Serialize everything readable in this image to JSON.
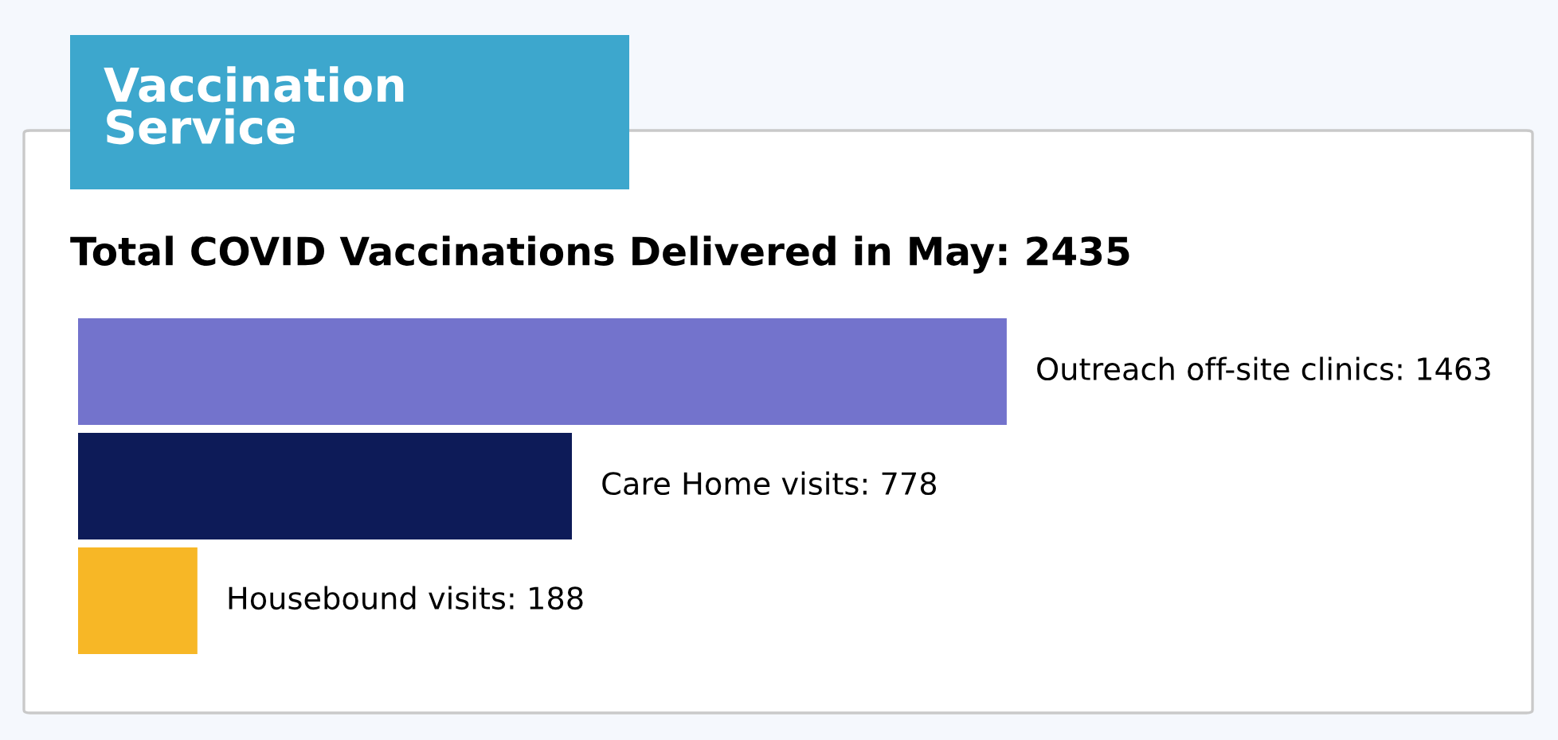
{
  "chart_data": {
    "type": "bar",
    "orientation": "horizontal",
    "title": "Vaccination Service",
    "subtitle": "Total COVID Vaccinations Delivered in May: 2435",
    "categories": [
      null,
      null,
      null
    ],
    "values": [
      1463,
      778,
      188
    ],
    "colors": [
      "#7373cc",
      "#0d1b58",
      "#f7b726"
    ],
    "value_labels": [
      "Outreach off-site clinics: 1463",
      "Care Home visits: 778",
      "Housebound visits: 188"
    ],
    "tick_labels": false
  }
}
